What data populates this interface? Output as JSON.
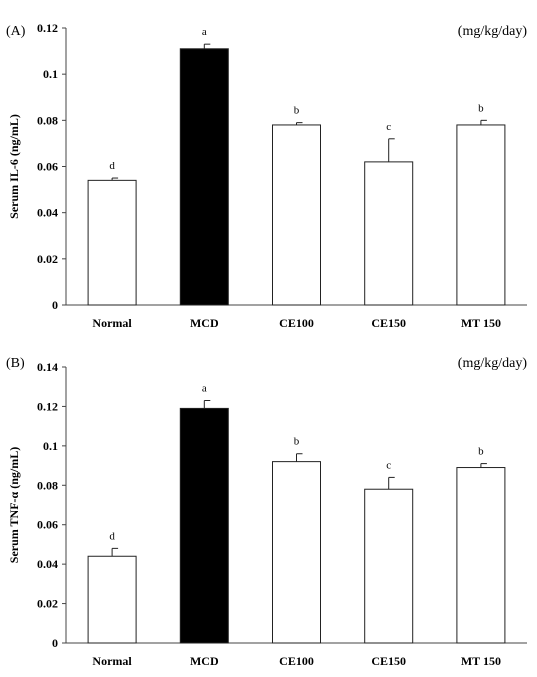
{
  "chart_data": [
    {
      "type": "bar",
      "panel": "(A)",
      "unit_note": "(mg/kg/day)",
      "ylabel": "Serum IL-6 (ng/mL)",
      "xlabel": "",
      "ylim": [
        0,
        0.12
      ],
      "yticks": [
        "0",
        "0.02",
        "0.04",
        "0.06",
        "0.08",
        "0.1",
        "0.12"
      ],
      "categories": [
        "Normal",
        "MCD",
        "CE100",
        "CE150",
        "MT 150"
      ],
      "values": [
        0.054,
        0.111,
        0.078,
        0.062,
        0.078
      ],
      "errors": [
        0.001,
        0.002,
        0.001,
        0.01,
        0.002
      ],
      "significance": [
        "d",
        "a",
        "b",
        "c",
        "b"
      ],
      "fill_colors": [
        "#ffffff",
        "#000000",
        "#ffffff",
        "#ffffff",
        "#ffffff"
      ],
      "grid": false,
      "legend": "none"
    },
    {
      "type": "bar",
      "panel": "(B)",
      "unit_note": "(mg/kg/day)",
      "ylabel": "Serum TNF-α (ng/mL)",
      "xlabel": "",
      "ylim": [
        0,
        0.14
      ],
      "yticks": [
        "0",
        "0.02",
        "0.04",
        "0.06",
        "0.08",
        "0.1",
        "0.12",
        "0.14"
      ],
      "categories": [
        "Normal",
        "MCD",
        "CE100",
        "CE150",
        "MT 150"
      ],
      "values": [
        0.044,
        0.119,
        0.092,
        0.078,
        0.089
      ],
      "errors": [
        0.004,
        0.004,
        0.004,
        0.006,
        0.002
      ],
      "significance": [
        "d",
        "a",
        "b",
        "c",
        "b"
      ],
      "fill_colors": [
        "#ffffff",
        "#000000",
        "#ffffff",
        "#ffffff",
        "#ffffff"
      ],
      "grid": false,
      "legend": "none"
    }
  ]
}
